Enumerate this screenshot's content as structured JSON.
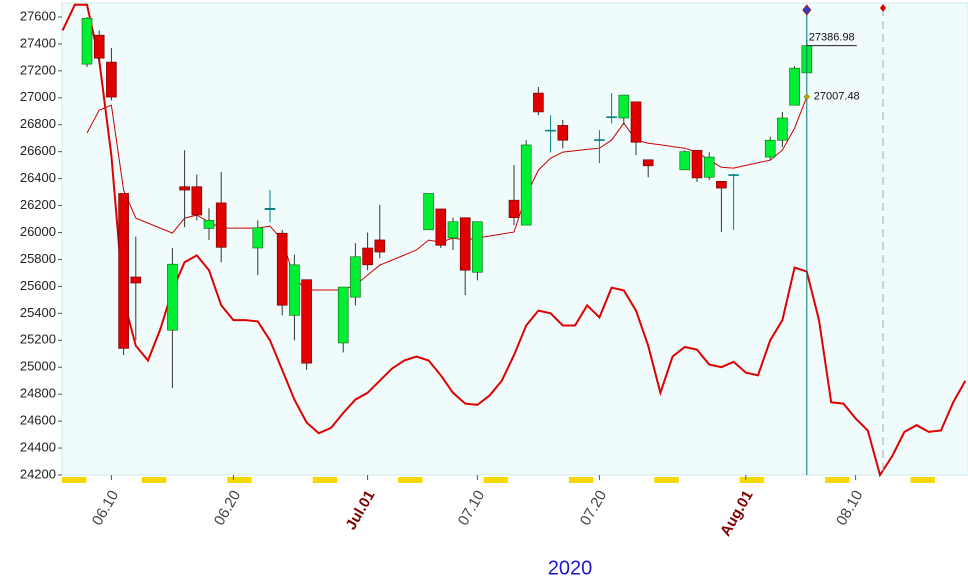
{
  "chart_data": {
    "type": "candlestick",
    "x_label": "2020",
    "categories": [
      null,
      null,
      null,
      null,
      "06.10",
      null,
      null,
      null,
      null,
      null,
      null,
      null,
      null,
      null,
      "06.20",
      null,
      null,
      null,
      null,
      null,
      null,
      null,
      null,
      null,
      null,
      "Jul.01",
      null,
      null,
      null,
      null,
      null,
      null,
      null,
      null,
      "07.10",
      null,
      null,
      null,
      null,
      null,
      null,
      null,
      null,
      null,
      "07.20",
      null,
      null,
      null,
      null,
      null,
      null,
      null,
      null,
      null,
      null,
      null,
      "Aug.01",
      null,
      null,
      null,
      null,
      null,
      null,
      null,
      null,
      "08.10",
      null,
      null,
      null,
      null,
      null,
      null,
      null,
      null,
      null
    ],
    "open": [
      null,
      null,
      27250,
      27465,
      27265,
      26290,
      25670,
      null,
      null,
      25275,
      26340,
      26340,
      26030,
      26220,
      null,
      null,
      25885,
      26170,
      25995,
      25385,
      25650,
      null,
      null,
      25180,
      25520,
      25885,
      25945,
      null,
      null,
      null,
      26020,
      26175,
      25960,
      26110,
      25705,
      null,
      null,
      26240,
      26055,
      27035,
      26755,
      26795,
      null,
      null,
      26690,
      26855,
      26850,
      26970,
      26540,
      null,
      null,
      26465,
      26610,
      26410,
      26380,
      26425,
      null,
      null,
      26560,
      26685,
      26945,
      27185,
      null,
      null,
      null,
      null,
      null,
      null,
      null,
      null,
      null,
      null,
      null,
      null,
      null
    ],
    "high": [
      null,
      null,
      27600,
      27500,
      27370,
      26290,
      25970,
      null,
      null,
      25885,
      26610,
      26430,
      26180,
      26450,
      null,
      null,
      26090,
      26315,
      26020,
      25835,
      25650,
      null,
      null,
      25595,
      25920,
      26000,
      26205,
      null,
      null,
      null,
      26290,
      26175,
      26110,
      26110,
      26080,
      null,
      null,
      26500,
      26685,
      27080,
      26870,
      26835,
      null,
      null,
      26760,
      27035,
      27020,
      26970,
      26540,
      null,
      null,
      26610,
      26610,
      26595,
      26380,
      26435,
      null,
      null,
      26710,
      26895,
      27235,
      27430,
      null,
      null,
      null,
      null,
      null,
      null,
      null,
      null,
      null,
      null,
      null,
      null,
      null
    ],
    "low": [
      null,
      null,
      27230,
      27250,
      26980,
      25090,
      25200,
      null,
      null,
      24845,
      26040,
      26090,
      25945,
      25780,
      null,
      null,
      25685,
      26075,
      25385,
      25200,
      24980,
      null,
      null,
      25110,
      25460,
      25720,
      25810,
      null,
      null,
      null,
      26020,
      25885,
      25870,
      25535,
      25645,
      null,
      null,
      26055,
      26055,
      26870,
      26595,
      26625,
      null,
      null,
      26515,
      26810,
      26800,
      26575,
      26410,
      null,
      null,
      26465,
      26375,
      26390,
      26005,
      26020,
      null,
      null,
      26535,
      26635,
      26945,
      27185,
      null,
      null,
      null,
      null,
      null,
      null,
      null,
      null,
      null,
      null,
      null,
      null,
      null
    ],
    "close": [
      null,
      null,
      27590,
      27294,
      27005,
      25140,
      25625,
      null,
      null,
      25765,
      26315,
      26130,
      26090,
      25890,
      null,
      null,
      26035,
      26180,
      25460,
      25760,
      25030,
      null,
      null,
      25595,
      25820,
      25760,
      25855,
      null,
      null,
      null,
      26290,
      25905,
      26080,
      25720,
      26080,
      null,
      null,
      26110,
      26650,
      26895,
      26760,
      26685,
      null,
      null,
      26685,
      26860,
      27020,
      26670,
      26495,
      null,
      null,
      26600,
      26405,
      26560,
      26330,
      26430,
      null,
      null,
      26685,
      26850,
      27220,
      27386.98,
      null,
      null,
      null,
      null,
      null,
      null,
      null,
      null,
      null,
      null,
      null,
      null,
      null
    ],
    "up_color": "#00ee33",
    "down_color": "#e00000",
    "series": [
      {
        "color": "#cc0000",
        "values": [
          null,
          null,
          26738,
          26908,
          26945,
          26315,
          26107,
          26070,
          26033,
          25996,
          26107,
          26129,
          26077,
          26033,
          26033,
          26033,
          26033,
          26048,
          25944,
          25662,
          25573,
          25573,
          25573,
          25573,
          25610,
          25684,
          25758,
          25795,
          25832,
          25870,
          25944,
          25929,
          25959,
          25944,
          25959,
          25974,
          25989,
          26003,
          26278,
          26463,
          26552,
          26597,
          26607,
          26617,
          26626,
          26686,
          26812,
          26686,
          26663,
          26651,
          26638,
          26626,
          26597,
          26537,
          26485,
          26478,
          26498,
          26518,
          26537,
          26612,
          26775,
          27007.48,
          null,
          null,
          null,
          null,
          null,
          null,
          null,
          null,
          null,
          null,
          null,
          null,
          null
        ]
      },
      {
        "color": "#e00000",
        "values": [
          27500,
          27690,
          27690,
          27280,
          26570,
          25500,
          25160,
          25050,
          25280,
          25570,
          25780,
          25830,
          25720,
          25460,
          25350,
          25350,
          25340,
          25200,
          24980,
          24760,
          24590,
          24510,
          24550,
          24660,
          24760,
          24810,
          24900,
          24990,
          25050,
          25080,
          25050,
          24940,
          24810,
          24730,
          24720,
          24790,
          24900,
          25090,
          25310,
          25420,
          25400,
          25310,
          25310,
          25460,
          25370,
          25590,
          25570,
          25420,
          25160,
          24810,
          25080,
          25150,
          25130,
          25020,
          25000,
          25040,
          24960,
          24940,
          25200,
          25350,
          25740,
          25710,
          25350,
          24740,
          24730,
          24620,
          24530,
          24200,
          24340,
          24520,
          24570,
          24520,
          24530,
          24740,
          24900
        ]
      }
    ],
    "annotations": {
      "last_close": 27386.98,
      "ma_last": 27007.48
    },
    "ylim": [
      24200,
      27700
    ],
    "yticks": [
      24200,
      24400,
      24600,
      24800,
      25000,
      25200,
      25400,
      25600,
      25800,
      26000,
      26200,
      26400,
      26600,
      26800,
      27000,
      27200,
      27400,
      27600
    ]
  }
}
